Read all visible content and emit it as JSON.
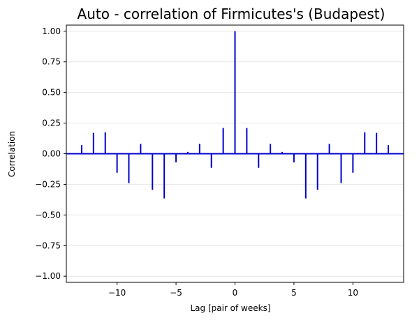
{
  "chart_data": {
    "type": "bar",
    "title": "Auto - correlation of Firmicutes's (Budapest)",
    "xlabel": "Lag [pair of weeks]",
    "ylabel": "Correlation",
    "xlim": [
      -14.3,
      14.3
    ],
    "ylim": [
      -1.05,
      1.05
    ],
    "x_ticks": [
      -10,
      -5,
      0,
      5,
      10
    ],
    "x_tick_labels": [
      "−10",
      "−5",
      "0",
      "5",
      "10"
    ],
    "y_ticks": [
      1.0,
      0.75,
      0.5,
      0.25,
      0.0,
      -0.25,
      -0.5,
      -0.75,
      -1.0
    ],
    "y_tick_labels": [
      "1.00",
      "0.75",
      "0.50",
      "0.25",
      "0.00",
      "−0.25",
      "−0.50",
      "−0.75",
      "−1.00"
    ],
    "grid": "horizontal",
    "stem_color": "#0000cc",
    "baseline_color": "#0000cc",
    "grid_color": "#e6e6e6",
    "lags": [
      -13,
      -12,
      -11,
      -10,
      -9,
      -8,
      -7,
      -6,
      -5,
      -4,
      -3,
      -2,
      -1,
      0,
      1,
      2,
      3,
      4,
      5,
      6,
      7,
      8,
      9,
      10,
      11,
      12,
      13
    ],
    "values": [
      0.07,
      0.17,
      0.175,
      -0.155,
      -0.24,
      0.08,
      -0.295,
      -0.365,
      -0.07,
      0.015,
      0.08,
      -0.115,
      0.21,
      1.0,
      0.21,
      -0.115,
      0.08,
      0.015,
      -0.07,
      -0.365,
      -0.295,
      0.08,
      -0.24,
      -0.155,
      0.175,
      0.17,
      0.07
    ]
  }
}
